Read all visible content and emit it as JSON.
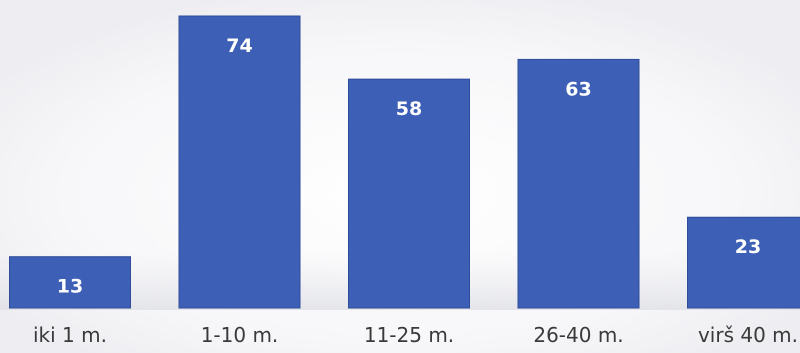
{
  "chart_data": {
    "type": "bar",
    "categories": [
      "iki 1 m.",
      "1-10 m.",
      "11-25 m.",
      "26-40 m.",
      "virš 40 m."
    ],
    "values": [
      13,
      74,
      58,
      63,
      23
    ],
    "title": "",
    "xlabel": "",
    "ylabel": "",
    "ylim": [
      0,
      74
    ],
    "grid": false,
    "legend": "none",
    "colors": {
      "bar": "#3d5fb5",
      "bar_edge": "#2f4c99",
      "value_label": "#ffffff",
      "category_label": "#3a3a3a"
    }
  }
}
